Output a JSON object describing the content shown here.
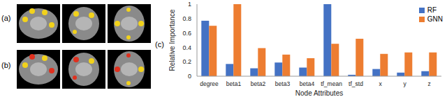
{
  "panel_labels": [
    "(a)",
    "(b)",
    "(c)"
  ],
  "chart_data": {
    "type": "bar",
    "x_label": "Node Attributes",
    "y_label": "Relative Importance",
    "categories": [
      "degree",
      "beta1",
      "beta2",
      "beta3",
      "beta4",
      "tf_mean",
      "tf_std",
      "x",
      "y",
      "z"
    ],
    "series": [
      {
        "name": "RF",
        "color": "#4472c4",
        "values": [
          0.77,
          0.17,
          0.11,
          0.19,
          0.12,
          1.0,
          0.02,
          0.1,
          0.05,
          0.07
        ]
      },
      {
        "name": "GNN",
        "color": "#ed7d31",
        "values": [
          0.7,
          1.0,
          0.39,
          0.3,
          0.25,
          0.45,
          0.52,
          0.31,
          0.33,
          0.33
        ]
      }
    ],
    "ylim": [
      0,
      1
    ],
    "yticks": [
      0,
      0.2,
      0.4,
      0.6,
      0.8,
      1
    ],
    "grid": false,
    "legend": "upper right"
  }
}
